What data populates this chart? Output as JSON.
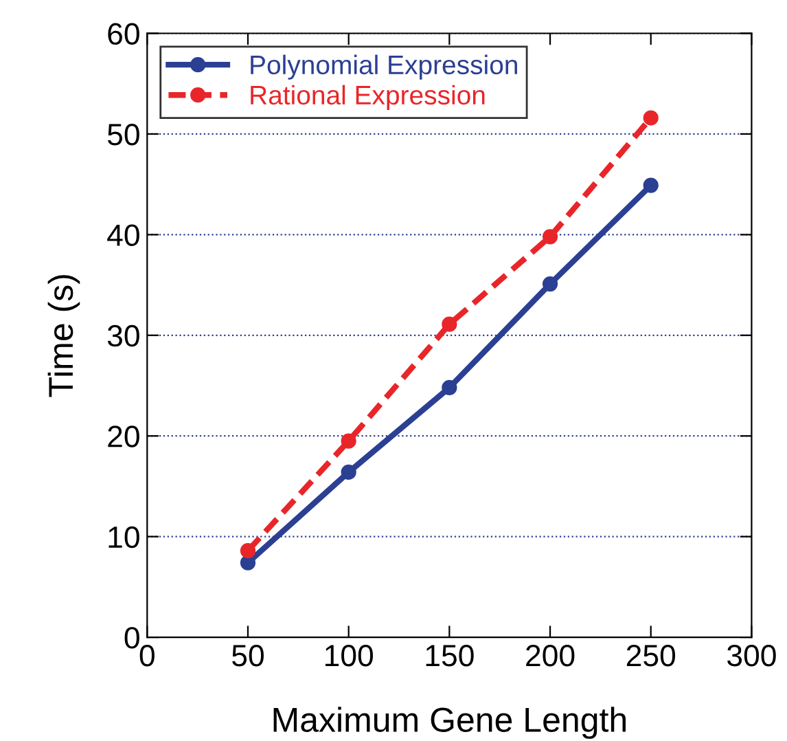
{
  "chart_data": {
    "type": "line",
    "xlabel": "Maximum Gene Length",
    "ylabel": "Time (s)",
    "x": [
      50,
      100,
      150,
      200,
      250
    ],
    "series": [
      {
        "name": "Polynomial Expression",
        "color": "#2b3f93",
        "values": [
          7.4,
          16.4,
          24.8,
          35.1,
          44.9
        ],
        "line_style": "solid"
      },
      {
        "name": "Rational Expression",
        "color": "#e8262a",
        "values": [
          8.6,
          19.5,
          31.1,
          39.8,
          51.6
        ],
        "line_style": "dashed"
      }
    ],
    "xlim": [
      0,
      300
    ],
    "xticks": [
      0,
      50,
      100,
      150,
      200,
      250,
      300
    ],
    "ylim": [
      0,
      60
    ],
    "yticks": [
      0,
      10,
      20,
      30,
      40,
      50,
      60
    ],
    "grid": "y",
    "legend": "top left",
    "marker": "circle"
  }
}
